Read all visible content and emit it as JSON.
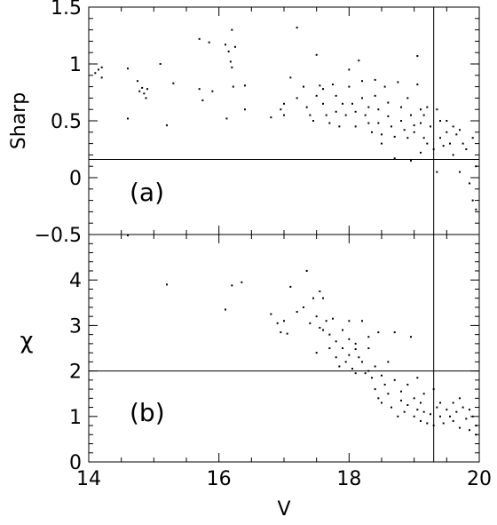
{
  "chart_data": [
    {
      "type": "scatter",
      "panel_label": "(a)",
      "xlabel": "",
      "ylabel": "Sharp",
      "xlim": [
        14,
        20
      ],
      "ylim": [
        -0.5,
        1.5
      ],
      "yticks": [
        -0.5,
        0,
        0.5,
        1,
        1.5
      ],
      "yticklabels": [
        "−0.5",
        "0",
        "0.5",
        "1",
        "1.5"
      ],
      "hline": 0.16,
      "vline": 19.3,
      "points": [
        [
          14.1,
          0.92
        ],
        [
          14.15,
          0.95
        ],
        [
          14.2,
          0.97
        ],
        [
          14.2,
          0.88
        ],
        [
          14.6,
          0.96
        ],
        [
          14.6,
          0.52
        ],
        [
          14.75,
          0.85
        ],
        [
          14.78,
          0.76
        ],
        [
          14.82,
          0.79
        ],
        [
          14.85,
          0.74
        ],
        [
          14.88,
          0.7
        ],
        [
          14.9,
          0.78
        ],
        [
          15.1,
          1.0
        ],
        [
          15.2,
          0.46
        ],
        [
          15.3,
          0.83
        ],
        [
          15.7,
          1.22
        ],
        [
          15.7,
          0.78
        ],
        [
          15.75,
          0.68
        ],
        [
          15.85,
          1.19
        ],
        [
          15.9,
          0.76
        ],
        [
          16.1,
          1.17
        ],
        [
          16.15,
          1.11
        ],
        [
          16.18,
          1.02
        ],
        [
          16.2,
          1.3
        ],
        [
          16.2,
          0.97
        ],
        [
          16.22,
          0.8
        ],
        [
          16.25,
          1.15
        ],
        [
          16.12,
          0.52
        ],
        [
          16.4,
          0.81
        ],
        [
          16.4,
          0.6
        ],
        [
          16.8,
          0.53
        ],
        [
          16.95,
          0.6
        ],
        [
          17.0,
          0.55
        ],
        [
          17.1,
          0.88
        ],
        [
          17.0,
          0.65
        ],
        [
          17.2,
          1.32
        ],
        [
          17.2,
          0.7
        ],
        [
          17.3,
          0.8
        ],
        [
          17.35,
          0.62
        ],
        [
          17.4,
          0.55
        ],
        [
          17.45,
          0.5
        ],
        [
          17.5,
          1.08
        ],
        [
          17.55,
          0.81
        ],
        [
          17.5,
          0.72
        ],
        [
          17.6,
          0.78
        ],
        [
          17.6,
          0.65
        ],
        [
          17.65,
          0.55
        ],
        [
          17.7,
          0.48
        ],
        [
          17.75,
          0.82
        ],
        [
          17.8,
          0.72
        ],
        [
          17.8,
          0.58
        ],
        [
          17.85,
          0.45
        ],
        [
          17.9,
          0.65
        ],
        [
          17.95,
          0.55
        ],
        [
          18.0,
          0.95
        ],
        [
          18.0,
          0.8
        ],
        [
          18.05,
          0.65
        ],
        [
          18.1,
          0.58
        ],
        [
          18.1,
          0.45
        ],
        [
          18.15,
          1.03
        ],
        [
          18.2,
          0.85
        ],
        [
          18.2,
          0.7
        ],
        [
          18.25,
          0.55
        ],
        [
          18.3,
          0.62
        ],
        [
          18.3,
          0.48
        ],
        [
          18.35,
          0.4
        ],
        [
          18.4,
          0.86
        ],
        [
          18.4,
          0.72
        ],
        [
          18.45,
          0.6
        ],
        [
          18.45,
          0.48
        ],
        [
          18.5,
          0.38
        ],
        [
          18.5,
          0.3
        ],
        [
          18.55,
          0.8
        ],
        [
          18.6,
          0.66
        ],
        [
          18.6,
          0.54
        ],
        [
          18.65,
          0.45
        ],
        [
          18.7,
          0.36
        ],
        [
          18.7,
          0.17
        ],
        [
          18.75,
          0.84
        ],
        [
          18.8,
          0.62
        ],
        [
          18.8,
          0.5
        ],
        [
          18.85,
          0.42
        ],
        [
          18.9,
          0.7
        ],
        [
          18.9,
          0.35
        ],
        [
          18.95,
          0.55
        ],
        [
          19.0,
          0.46
        ],
        [
          19.0,
          0.4
        ],
        [
          19.05,
          1.07
        ],
        [
          19.05,
          0.82
        ],
        [
          19.1,
          0.6
        ],
        [
          19.1,
          0.48
        ],
        [
          19.15,
          0.55
        ],
        [
          19.15,
          0.35
        ],
        [
          19.2,
          0.3
        ],
        [
          19.2,
          0.62
        ],
        [
          19.25,
          0.45
        ],
        [
          19.3,
          0.25
        ],
        [
          19.35,
          0.6
        ],
        [
          19.35,
          0.05
        ],
        [
          19.4,
          0.5
        ],
        [
          19.4,
          0.35
        ],
        [
          19.45,
          0.28
        ],
        [
          19.5,
          0.5
        ],
        [
          19.5,
          0.4
        ],
        [
          19.55,
          0.3
        ],
        [
          19.6,
          0.45
        ],
        [
          19.6,
          0.2
        ],
        [
          19.65,
          0.38
        ],
        [
          19.7,
          0.42
        ],
        [
          19.7,
          0.05
        ],
        [
          19.75,
          0.3
        ],
        [
          19.8,
          0.25
        ],
        [
          19.85,
          -0.05
        ],
        [
          19.9,
          0.35
        ],
        [
          19.9,
          -0.2
        ],
        [
          19.95,
          0.1
        ],
        [
          19.95,
          -0.28
        ],
        [
          18.95,
          0.15
        ],
        [
          19.1,
          0.22
        ]
      ]
    },
    {
      "type": "scatter",
      "panel_label": "(b)",
      "xlabel": "V",
      "ylabel": "χ",
      "xlim": [
        14,
        20
      ],
      "ylim": [
        0,
        5
      ],
      "xticks": [
        14,
        16,
        18,
        20
      ],
      "xticklabels": [
        "14",
        "16",
        "18",
        "20"
      ],
      "yticks": [
        0,
        1,
        2,
        3,
        4
      ],
      "yticklabels": [
        "0",
        "1",
        "2",
        "3",
        "4"
      ],
      "hline": 2.0,
      "vline": 19.3,
      "points": [
        [
          14.6,
          4.98
        ],
        [
          15.2,
          3.9
        ],
        [
          16.1,
          3.35
        ],
        [
          16.2,
          3.88
        ],
        [
          16.35,
          3.95
        ],
        [
          16.8,
          3.25
        ],
        [
          16.9,
          3.05
        ],
        [
          16.95,
          2.85
        ],
        [
          17.0,
          3.1
        ],
        [
          17.05,
          2.82
        ],
        [
          17.1,
          3.85
        ],
        [
          17.2,
          3.3
        ],
        [
          17.3,
          3.4
        ],
        [
          17.35,
          4.2
        ],
        [
          17.4,
          3.05
        ],
        [
          17.45,
          3.6
        ],
        [
          17.5,
          3.2
        ],
        [
          17.5,
          2.4
        ],
        [
          17.55,
          3.75
        ],
        [
          17.6,
          3.6
        ],
        [
          17.6,
          2.9
        ],
        [
          17.65,
          3.1
        ],
        [
          17.7,
          2.8
        ],
        [
          17.7,
          2.5
        ],
        [
          17.75,
          3.15
        ],
        [
          17.8,
          2.65
        ],
        [
          17.8,
          2.3
        ],
        [
          17.85,
          2.1
        ],
        [
          17.9,
          2.9
        ],
        [
          17.9,
          2.5
        ],
        [
          17.95,
          2.2
        ],
        [
          18.0,
          3.1
        ],
        [
          18.0,
          2.7
        ],
        [
          18.0,
          2.35
        ],
        [
          18.05,
          2.05
        ],
        [
          18.1,
          2.6
        ],
        [
          18.1,
          1.95
        ],
        [
          18.15,
          2.3
        ],
        [
          18.2,
          3.1
        ],
        [
          18.2,
          2.2
        ],
        [
          18.25,
          1.95
        ],
        [
          18.3,
          2.5
        ],
        [
          18.3,
          2.0
        ],
        [
          18.35,
          1.85
        ],
        [
          18.4,
          2.1
        ],
        [
          18.4,
          1.6
        ],
        [
          18.45,
          1.4
        ],
        [
          18.45,
          2.85
        ],
        [
          18.5,
          1.9
        ],
        [
          18.5,
          1.3
        ],
        [
          18.55,
          1.7
        ],
        [
          18.6,
          2.2
        ],
        [
          18.6,
          1.5
        ],
        [
          18.65,
          1.2
        ],
        [
          18.7,
          1.8
        ],
        [
          18.7,
          2.85
        ],
        [
          18.75,
          1.0
        ],
        [
          18.8,
          1.55
        ],
        [
          18.8,
          1.35
        ],
        [
          18.85,
          1.1
        ],
        [
          18.9,
          1.7
        ],
        [
          18.9,
          1.25
        ],
        [
          18.95,
          2.75
        ],
        [
          19.0,
          1.4
        ],
        [
          19.0,
          1.0
        ],
        [
          19.05,
          1.15
        ],
        [
          19.1,
          1.3
        ],
        [
          19.1,
          0.9
        ],
        [
          19.15,
          1.5
        ],
        [
          19.15,
          1.1
        ],
        [
          19.2,
          0.85
        ],
        [
          19.25,
          1.05
        ],
        [
          19.3,
          1.6
        ],
        [
          19.3,
          0.8
        ],
        [
          19.35,
          1.2
        ],
        [
          19.4,
          1.3
        ],
        [
          19.4,
          1.0
        ],
        [
          19.45,
          0.85
        ],
        [
          19.5,
          1.15
        ],
        [
          19.55,
          1.0
        ],
        [
          19.6,
          1.3
        ],
        [
          19.6,
          0.9
        ],
        [
          19.65,
          1.1
        ],
        [
          19.7,
          0.75
        ],
        [
          19.7,
          1.4
        ],
        [
          19.75,
          1.2
        ],
        [
          19.8,
          0.95
        ],
        [
          19.85,
          1.15
        ],
        [
          19.85,
          0.7
        ],
        [
          19.9,
          1.0
        ],
        [
          19.95,
          0.8
        ],
        [
          19.95,
          0.6
        ],
        [
          18.1,
          2.48
        ],
        [
          17.55,
          2.95
        ],
        [
          18.3,
          2.75
        ],
        [
          19.05,
          1.85
        ]
      ]
    }
  ]
}
